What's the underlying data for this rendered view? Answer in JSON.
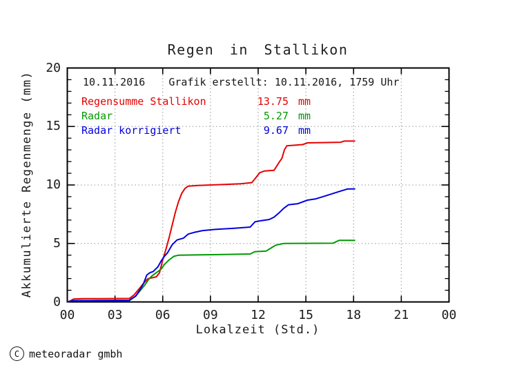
{
  "chart": {
    "title": "Regen in Stallikon",
    "info": {
      "date": "10.11.2016",
      "created": "Grafik erstellt: 10.11.2016, 1759 Uhr"
    }
  },
  "legend": {
    "rows": [
      {
        "label": "Regensumme Stallikon",
        "value": "13.75",
        "unit": "mm",
        "color": "#e60000"
      },
      {
        "label": "Radar",
        "value": "5.27",
        "unit": "mm",
        "color": "#009900"
      },
      {
        "label": "Radar korrigiert",
        "value": "9.67",
        "unit": "mm",
        "color": "#0000dd"
      }
    ]
  },
  "footer": {
    "copyright_symbol": "C",
    "copyright_text": "meteoradar gmbh"
  },
  "chart_data": {
    "type": "line",
    "title": "Regen in Stallikon",
    "xlabel": "Lokalzeit (Std.)",
    "ylabel": "Akkumulierte Regenmenge (mm)",
    "xlim": [
      0,
      24
    ],
    "ylim": [
      0,
      20
    ],
    "x_tick_values": [
      0,
      3,
      6,
      9,
      12,
      15,
      18,
      21,
      24
    ],
    "x_tick_labels": [
      "00",
      "03",
      "06",
      "09",
      "12",
      "15",
      "18",
      "21",
      "00"
    ],
    "y_tick_values": [
      0,
      5,
      10,
      15,
      20
    ],
    "y_tick_labels": [
      "0",
      "5",
      "10",
      "15",
      "20"
    ],
    "y_minor_step": 1,
    "grid": {
      "x_lines": [
        3,
        6,
        9,
        12,
        15,
        18,
        21
      ],
      "y_lines": [
        5,
        10,
        15
      ],
      "color": "#9e9e9e",
      "style": "dotted"
    },
    "axis_color": "#000000",
    "series": [
      {
        "name": "Regensumme Stallikon",
        "color": "#e60000",
        "total_mm": 13.75,
        "points": [
          [
            0,
            0
          ],
          [
            0.2,
            0.1
          ],
          [
            0.4,
            0.25
          ],
          [
            1,
            0.28
          ],
          [
            2,
            0.28
          ],
          [
            3.9,
            0.3
          ],
          [
            4.2,
            0.6
          ],
          [
            4.5,
            1.1
          ],
          [
            4.8,
            1.6
          ],
          [
            5.0,
            1.9
          ],
          [
            5.1,
            2.0
          ],
          [
            5.6,
            2.15
          ],
          [
            5.8,
            2.5
          ],
          [
            6.0,
            3.6
          ],
          [
            6.2,
            4.5
          ],
          [
            6.4,
            5.5
          ],
          [
            6.6,
            6.6
          ],
          [
            6.8,
            7.7
          ],
          [
            7.0,
            8.6
          ],
          [
            7.2,
            9.3
          ],
          [
            7.4,
            9.7
          ],
          [
            7.6,
            9.9
          ],
          [
            8.2,
            9.95
          ],
          [
            9.9,
            10.05
          ],
          [
            10.9,
            10.1
          ],
          [
            11.6,
            10.2
          ],
          [
            11.9,
            10.7
          ],
          [
            12.1,
            11.05
          ],
          [
            12.4,
            11.2
          ],
          [
            13.0,
            11.25
          ],
          [
            13.3,
            11.9
          ],
          [
            13.5,
            12.3
          ],
          [
            13.65,
            13.0
          ],
          [
            13.8,
            13.35
          ],
          [
            14.8,
            13.45
          ],
          [
            15.1,
            13.6
          ],
          [
            17.2,
            13.65
          ],
          [
            17.4,
            13.75
          ],
          [
            18.1,
            13.75
          ]
        ]
      },
      {
        "name": "Radar",
        "color": "#009900",
        "total_mm": 5.27,
        "points": [
          [
            0,
            0
          ],
          [
            0.3,
            0.1
          ],
          [
            1,
            0.1
          ],
          [
            2,
            0.12
          ],
          [
            3.9,
            0.12
          ],
          [
            4.3,
            0.5
          ],
          [
            4.6,
            1.0
          ],
          [
            4.9,
            1.5
          ],
          [
            5.1,
            1.9
          ],
          [
            5.3,
            2.2
          ],
          [
            5.6,
            2.5
          ],
          [
            5.9,
            2.8
          ],
          [
            6.1,
            3.2
          ],
          [
            6.4,
            3.6
          ],
          [
            6.7,
            3.9
          ],
          [
            7.0,
            4.0
          ],
          [
            8.0,
            4.02
          ],
          [
            9.5,
            4.05
          ],
          [
            11.5,
            4.1
          ],
          [
            11.8,
            4.3
          ],
          [
            12.5,
            4.35
          ],
          [
            12.8,
            4.6
          ],
          [
            13.1,
            4.85
          ],
          [
            13.6,
            5.0
          ],
          [
            16.7,
            5.02
          ],
          [
            17.1,
            5.27
          ],
          [
            18.1,
            5.27
          ]
        ]
      },
      {
        "name": "Radar korrigiert",
        "color": "#0000dd",
        "total_mm": 9.67,
        "points": [
          [
            0,
            0
          ],
          [
            0.3,
            0.1
          ],
          [
            1,
            0.12
          ],
          [
            3.9,
            0.15
          ],
          [
            4.3,
            0.5
          ],
          [
            4.6,
            1.1
          ],
          [
            4.8,
            1.6
          ],
          [
            5.0,
            2.3
          ],
          [
            5.2,
            2.5
          ],
          [
            5.4,
            2.6
          ],
          [
            5.7,
            3.0
          ],
          [
            5.9,
            3.5
          ],
          [
            6.1,
            3.9
          ],
          [
            6.3,
            4.2
          ],
          [
            6.6,
            4.9
          ],
          [
            6.9,
            5.3
          ],
          [
            7.3,
            5.45
          ],
          [
            7.6,
            5.8
          ],
          [
            8.0,
            5.95
          ],
          [
            8.5,
            6.1
          ],
          [
            9.3,
            6.2
          ],
          [
            10.5,
            6.3
          ],
          [
            11.5,
            6.4
          ],
          [
            11.8,
            6.85
          ],
          [
            12.2,
            6.95
          ],
          [
            12.7,
            7.05
          ],
          [
            13.0,
            7.25
          ],
          [
            13.3,
            7.6
          ],
          [
            13.6,
            8.0
          ],
          [
            13.9,
            8.3
          ],
          [
            14.5,
            8.4
          ],
          [
            15.1,
            8.7
          ],
          [
            15.6,
            8.8
          ],
          [
            16.3,
            9.1
          ],
          [
            17.0,
            9.4
          ],
          [
            17.6,
            9.65
          ],
          [
            18.1,
            9.67
          ]
        ]
      }
    ]
  }
}
